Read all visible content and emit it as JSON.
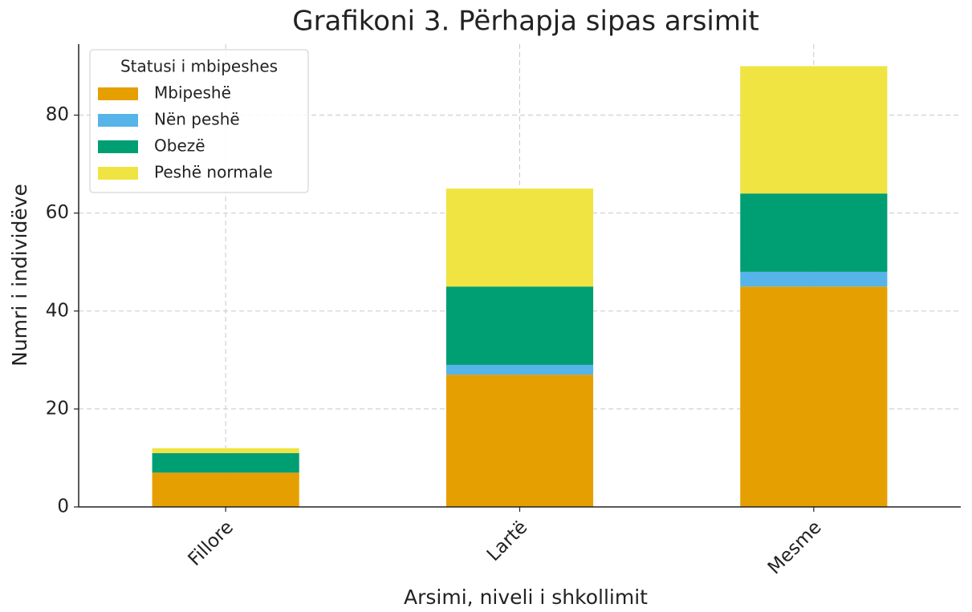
{
  "chart_data": {
    "type": "stacked_bar",
    "title": "Grafikoni 3. Përhapja sipas arsimit",
    "xlabel": "Arsimi, niveli i shkollimit",
    "ylabel": "Numri i individëve",
    "categories": [
      "Fillore",
      "Lartë",
      "Mesme"
    ],
    "series": [
      {
        "name": "Mbipeshë",
        "color": "#E69F00",
        "values": [
          7,
          27,
          45
        ]
      },
      {
        "name": "Nën peshë",
        "color": "#56B4E9",
        "values": [
          0,
          2,
          3
        ]
      },
      {
        "name": "Obezë",
        "color": "#009E73",
        "values": [
          4,
          16,
          16
        ]
      },
      {
        "name": "Peshë normale",
        "color": "#F0E442",
        "values": [
          1,
          20,
          26
        ]
      }
    ],
    "legend_title": "Statusi i mbipeshes",
    "legend": "upper left",
    "ylim": [
      0,
      94.5
    ],
    "yticks": [
      0,
      20,
      40,
      60,
      80
    ],
    "grid": true
  }
}
